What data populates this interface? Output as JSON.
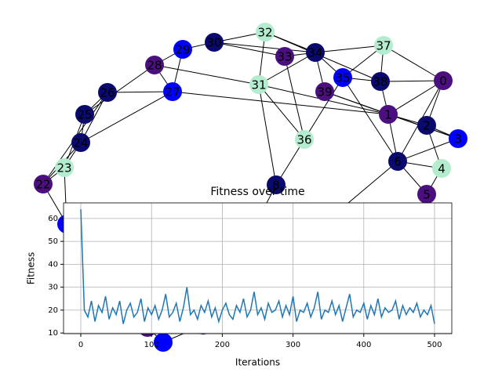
{
  "graph": {
    "nodes": [
      {
        "label": "0",
        "color": "#4b0f7f"
      },
      {
        "label": "1",
        "color": "#4b0f7f"
      },
      {
        "label": "2",
        "color": "#0a0a6e"
      },
      {
        "label": "3",
        "color": "#0000ff"
      },
      {
        "label": "4",
        "color": "#b4ecd0"
      },
      {
        "label": "5",
        "color": "#4b0f7f"
      },
      {
        "label": "6",
        "color": "#0a0a6e"
      },
      {
        "label": "8",
        "color": "#0a0a6e"
      },
      {
        "label": "22",
        "color": "#4b0f7f"
      },
      {
        "label": "23",
        "color": "#b4ecd0"
      },
      {
        "label": "24",
        "color": "#0a0a6e"
      },
      {
        "label": "25",
        "color": "#0a0a6e"
      },
      {
        "label": "26",
        "color": "#0a0a6e"
      },
      {
        "label": "27",
        "color": "#0000ff"
      },
      {
        "label": "28",
        "color": "#4b0f7f"
      },
      {
        "label": "29",
        "color": "#0000ff"
      },
      {
        "label": "30",
        "color": "#0a0a6e"
      },
      {
        "label": "31",
        "color": "#b4ecd0"
      },
      {
        "label": "32",
        "color": "#b4ecd0"
      },
      {
        "label": "33",
        "color": "#4b0f7f"
      },
      {
        "label": "34",
        "color": "#0a0a6e"
      },
      {
        "label": "35",
        "color": "#0000ff"
      },
      {
        "label": "36",
        "color": "#b4ecd0"
      },
      {
        "label": "37",
        "color": "#b4ecd0"
      },
      {
        "label": "38",
        "color": "#0a0a6e"
      },
      {
        "label": "39",
        "color": "#4b0f7f"
      },
      {
        "label": null,
        "color": "#0000ff"
      },
      {
        "label": null,
        "color": "#4b0f7f"
      },
      {
        "label": null,
        "color": "#0000ff"
      },
      {
        "label": null,
        "color": "#0a0a6e"
      }
    ]
  },
  "chart_data": {
    "type": "line",
    "title": "Fitness over time",
    "x_label": "Iterations",
    "y_label": "Fitness",
    "color": "#1f77b4",
    "grid": true,
    "x": [
      0,
      5,
      10,
      15,
      20,
      25,
      30,
      35,
      40,
      45,
      50,
      55,
      60,
      65,
      70,
      75,
      80,
      85,
      90,
      95,
      100,
      105,
      110,
      115,
      120,
      125,
      130,
      135,
      140,
      145,
      150,
      155,
      160,
      165,
      170,
      175,
      180,
      185,
      190,
      195,
      200,
      205,
      210,
      215,
      220,
      225,
      230,
      235,
      240,
      245,
      250,
      255,
      260,
      265,
      270,
      275,
      280,
      285,
      290,
      295,
      300,
      305,
      310,
      315,
      320,
      325,
      330,
      335,
      340,
      345,
      350,
      355,
      360,
      365,
      370,
      375,
      380,
      385,
      390,
      395,
      400,
      405,
      410,
      415,
      420,
      425,
      430,
      435,
      440,
      445,
      450,
      455,
      460,
      465,
      470,
      475,
      480,
      485,
      490,
      495,
      500
    ],
    "values": [
      64,
      20,
      17,
      24,
      15,
      22,
      19,
      26,
      16,
      21,
      18,
      24,
      14,
      20,
      23,
      17,
      19,
      25,
      15,
      21,
      18,
      22,
      16,
      20,
      27,
      17,
      19,
      23,
      15,
      21,
      30,
      18,
      20,
      16,
      22,
      19,
      24,
      17,
      21,
      15,
      20,
      23,
      18,
      16,
      22,
      19,
      25,
      17,
      20,
      28,
      18,
      21,
      16,
      23,
      19,
      20,
      24,
      17,
      22,
      18,
      26,
      15,
      20,
      19,
      23,
      17,
      21,
      28,
      16,
      20,
      19,
      24,
      18,
      22,
      15,
      21,
      27,
      17,
      20,
      19,
      23,
      16,
      22,
      18,
      25,
      17,
      21,
      19,
      20,
      24,
      16,
      22,
      18,
      21,
      19,
      23,
      17,
      20,
      18,
      22,
      14
    ],
    "xlim": [
      -24.4,
      524.4
    ],
    "ylim": [
      9.7,
      66.8
    ],
    "xticks": [
      0,
      100,
      200,
      300,
      400,
      500
    ],
    "yticks": [
      10,
      20,
      30,
      40,
      50,
      60
    ]
  }
}
